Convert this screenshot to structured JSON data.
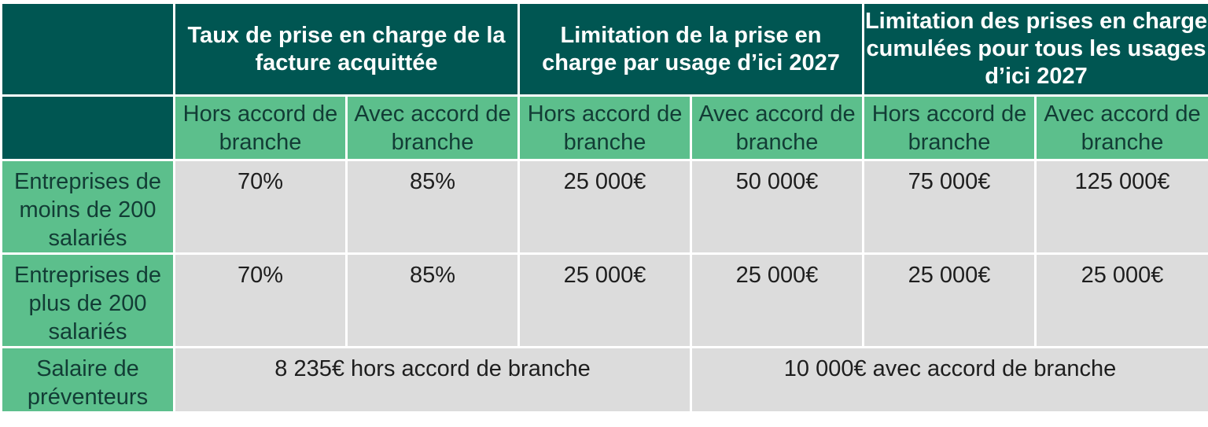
{
  "header": {
    "groups": [
      "Taux de prise en charge de la facture acquittée",
      "Limitation de la prise en charge par usage d’ici 2027",
      "Limitation des prises en charge cumulées pour tous les usages d’ici 2027"
    ],
    "sub_labels": [
      "Hors accord de branche",
      "Avec accord de branche",
      "Hors accord de branche",
      "Avec accord de branche",
      "Hors accord de branche",
      "Avec accord de branche"
    ]
  },
  "rows": [
    {
      "label": "Entreprises de moins de 200 salariés",
      "values": [
        "70%",
        "85%",
        "25 000€",
        "50 000€",
        "75 000€",
        "125 000€"
      ]
    },
    {
      "label": "Entreprises de plus de 200 salariés",
      "values": [
        "70%",
        "85%",
        "25 000€",
        "25 000€",
        "25 000€",
        "25 000€"
      ]
    }
  ],
  "footer": {
    "label": "Salaire de préventeurs",
    "left": "8 235€ hors accord de branche",
    "right": "10 000€ avec accord de branche"
  },
  "colors": {
    "dark_header": "#005652",
    "green_subheader": "#5cbf8c",
    "grey_cells": "#dcdcdc"
  }
}
